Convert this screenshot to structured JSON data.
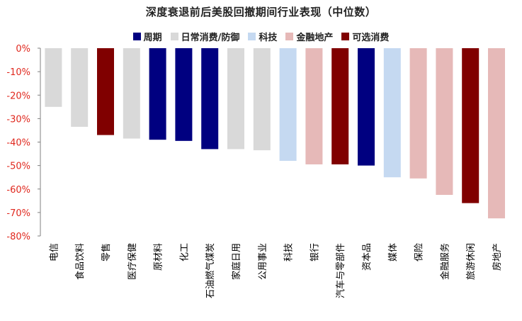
{
  "chart_data": {
    "type": "bar",
    "title": "深度衰退前后美股回撤期间行业表现（中位数）",
    "ylim": [
      -80,
      0
    ],
    "yticks": [
      "0%",
      "-10%",
      "-20%",
      "-30%",
      "-40%",
      "-50%",
      "-60%",
      "-70%",
      "-80%"
    ],
    "yticks_values": [
      0,
      -10,
      -20,
      -30,
      -40,
      -50,
      -60,
      -70,
      -80
    ],
    "legend": [
      {
        "name": "周期",
        "color": "#000080"
      },
      {
        "name": "日常消费/防御",
        "color": "#d9d9d9"
      },
      {
        "name": "科技",
        "color": "#c5d9f1"
      },
      {
        "name": "金融地产",
        "color": "#e6b9b8"
      },
      {
        "name": "可选消费",
        "color": "#800000"
      }
    ],
    "legend_position": "top",
    "categories": [
      "电信",
      "食品饮料",
      "零售",
      "医疗保健",
      "原材料",
      "化工",
      "石油燃气煤炭",
      "家庭日用",
      "公用事业",
      "科技",
      "银行",
      "汽车与零部件",
      "资本品",
      "媒体",
      "保险",
      "金融服务",
      "旅游休闲",
      "房地产"
    ],
    "values": [
      -25,
      -33.5,
      -37,
      -38.5,
      -39,
      -39.5,
      -43,
      -43,
      -43.5,
      -48,
      -49.5,
      -49.5,
      -50,
      -55,
      -55.5,
      -62.5,
      -66,
      -72.5
    ],
    "groups": [
      "日常消费/防御",
      "日常消费/防御",
      "可选消费",
      "日常消费/防御",
      "周期",
      "周期",
      "周期",
      "日常消费/防御",
      "日常消费/防御",
      "科技",
      "金融地产",
      "可选消费",
      "周期",
      "科技",
      "金融地产",
      "金融地产",
      "可选消费",
      "金融地产"
    ],
    "grid": false
  }
}
